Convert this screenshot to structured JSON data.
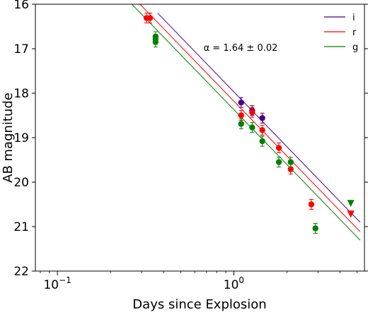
{
  "chart_data": {
    "type": "scatter",
    "title": "",
    "xlabel": "Days since Explosion",
    "ylabel": "AB magnitude",
    "xscale": "log",
    "xlim": [
      0.075,
      5.5
    ],
    "ylim": [
      22,
      16
    ],
    "y_inverted": true,
    "x_ticks": [
      {
        "value": 0.1,
        "base": "10",
        "exp": "−1"
      },
      {
        "value": 1,
        "base": "10",
        "exp": "0"
      }
    ],
    "y_ticks": [
      "16",
      "17",
      "18",
      "19",
      "20",
      "21",
      "22"
    ],
    "annotation": {
      "text": "α = 1.64 ± 0.02",
      "position": "upper-center"
    },
    "legend": {
      "position": "top-right"
    },
    "series": [
      {
        "name": "i",
        "color": "#4b0082",
        "fit": {
          "x_start": 0.37,
          "x_end": 5.2,
          "y_at_1": 17.97,
          "slope": 1.64
        },
        "points": [
          {
            "x": 1.1,
            "y": 18.21,
            "marker": "circle"
          },
          {
            "x": 1.27,
            "y": 18.39,
            "marker": "circle"
          },
          {
            "x": 1.45,
            "y": 18.56,
            "marker": "circle"
          },
          {
            "x": 4.6,
            "y": 20.72,
            "marker": "triangle-down"
          }
        ]
      },
      {
        "name": "r",
        "color": "#ff0000",
        "fit": {
          "x_start": 0.27,
          "x_end": 5.2,
          "y_at_1": 18.18,
          "slope": 1.64
        },
        "points": [
          {
            "x": 0.32,
            "y": 16.31,
            "marker": "circle"
          },
          {
            "x": 0.335,
            "y": 16.31,
            "marker": "circle"
          },
          {
            "x": 1.1,
            "y": 18.5,
            "marker": "circle"
          },
          {
            "x": 1.27,
            "y": 18.43,
            "marker": "circle"
          },
          {
            "x": 1.45,
            "y": 18.83,
            "marker": "circle"
          },
          {
            "x": 1.8,
            "y": 19.23,
            "marker": "circle"
          },
          {
            "x": 2.1,
            "y": 19.71,
            "marker": "circle"
          },
          {
            "x": 2.75,
            "y": 20.5,
            "marker": "circle"
          },
          {
            "x": 4.6,
            "y": 20.72,
            "marker": "triangle-down"
          }
        ]
      },
      {
        "name": "g",
        "color": "#008000",
        "fit": {
          "x_start": 0.24,
          "x_end": 5.2,
          "y_at_1": 18.37,
          "slope": 1.64
        },
        "points": [
          {
            "x": 0.36,
            "y": 16.73,
            "marker": "circle"
          },
          {
            "x": 0.36,
            "y": 16.79,
            "marker": "circle"
          },
          {
            "x": 0.36,
            "y": 16.85,
            "marker": "circle"
          },
          {
            "x": 1.1,
            "y": 18.69,
            "marker": "circle"
          },
          {
            "x": 1.27,
            "y": 18.77,
            "marker": "circle"
          },
          {
            "x": 1.45,
            "y": 19.08,
            "marker": "circle"
          },
          {
            "x": 1.8,
            "y": 19.55,
            "marker": "circle"
          },
          {
            "x": 2.1,
            "y": 19.55,
            "marker": "circle"
          },
          {
            "x": 2.9,
            "y": 21.04,
            "marker": "circle"
          },
          {
            "x": 4.6,
            "y": 20.48,
            "marker": "triangle-down"
          }
        ]
      }
    ]
  }
}
